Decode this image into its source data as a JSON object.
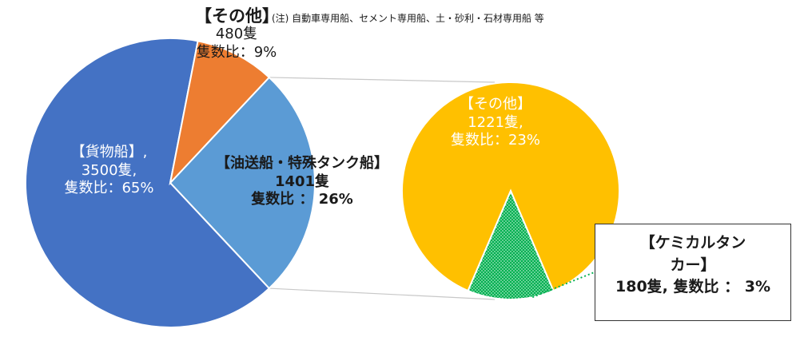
{
  "note": {
    "title": "【その他】",
    "text": "(注) 自動車専用船、セメント専用船、土・砂利・石材専用船 等"
  },
  "labels": {
    "other": {
      "count": "480隻",
      "ratio": "隻数比：9%"
    },
    "cargo": {
      "name": "【貨物船】,",
      "count": "3500隻,",
      "ratio": "隻数比：65%"
    },
    "oil": {
      "name": "【油送船・特殊タンク船】",
      "count": "1401隻",
      "ratio": "隻数比 ： 26%"
    },
    "sub_other": {
      "name": "【その他】",
      "count": "1221隻,",
      "ratio": "隻数比：23%"
    },
    "chem": {
      "name_line1": "【ケミカルタン",
      "name_line2": "カー】",
      "count_ratio": "180隻, 隻数比 ： 3%"
    }
  },
  "chart_data": [
    {
      "type": "pie",
      "title": "",
      "slices": [
        {
          "label": "【貨物船】",
          "count": 3500,
          "percent": 65,
          "color": "#4472C4"
        },
        {
          "label": "【その他】",
          "count": 480,
          "percent": 9,
          "color": "#ED7D31"
        },
        {
          "label": "【油送船・特殊タンク船】",
          "count": 1401,
          "percent": 26,
          "color": "#5B9BD5"
        }
      ]
    },
    {
      "type": "pie",
      "title": "",
      "slices": [
        {
          "label": "【その他】",
          "count": 1221,
          "percent": 23,
          "color": "#FFC000"
        },
        {
          "label": "【ケミカルタンカー】",
          "count": 180,
          "percent": 3,
          "color": "#00B050",
          "pattern": "dotted"
        }
      ]
    }
  ]
}
